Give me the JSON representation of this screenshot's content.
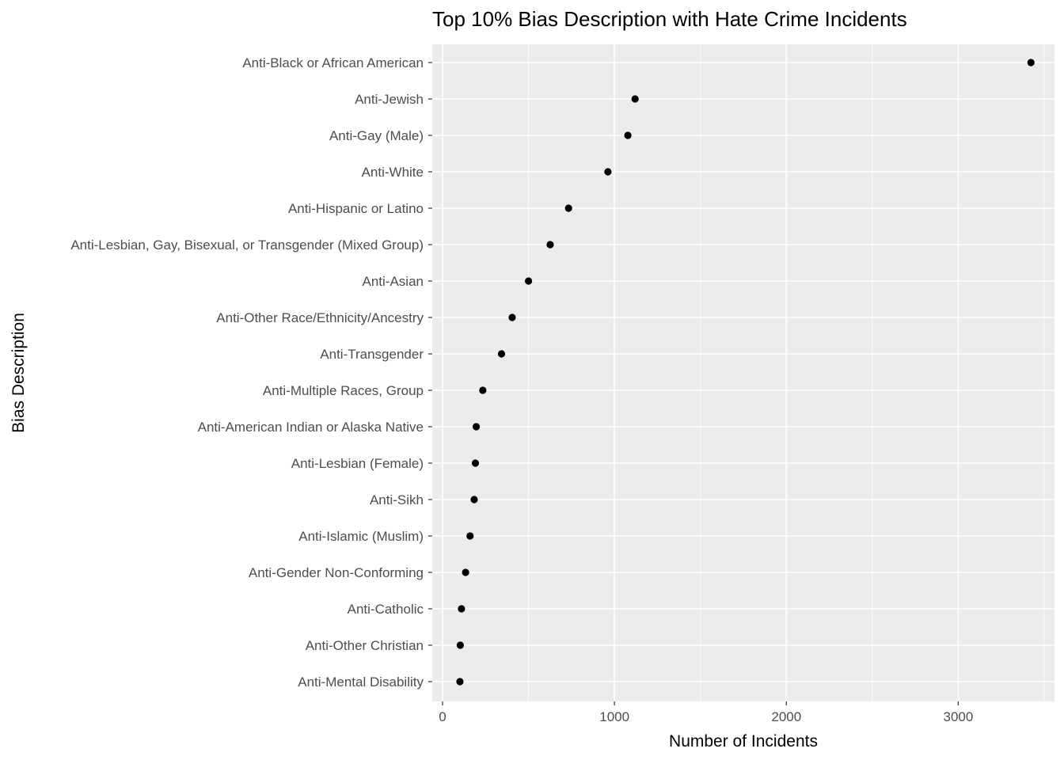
{
  "chart_data": {
    "type": "scatter",
    "title": "Top 10% Bias Description with Hate Crime Incidents",
    "xlabel": "Number of Incidents",
    "ylabel": "Bias Description",
    "xlim": [
      -60,
      3560
    ],
    "x_ticks": [
      0,
      1000,
      2000,
      3000
    ],
    "x_tick_labels": [
      "0",
      "1000",
      "2000",
      "3000"
    ],
    "grid": true,
    "legend": "none",
    "colors": {
      "panel_background": "#ebebeb",
      "grid_major": "#ffffff",
      "point": "#000000",
      "tick_text": "#4d4d4d",
      "tick_mark": "#333333"
    },
    "categories": [
      "Anti-Black or African American",
      "Anti-Jewish",
      "Anti-Gay (Male)",
      "Anti-White",
      "Anti-Hispanic or Latino",
      "Anti-Lesbian, Gay, Bisexual, or Transgender (Mixed Group)",
      "Anti-Asian",
      "Anti-Other Race/Ethnicity/Ancestry",
      "Anti-Transgender",
      "Anti-Multiple Races, Group",
      "Anti-American Indian or Alaska Native",
      "Anti-Lesbian (Female)",
      "Anti-Sikh",
      "Anti-Islamic (Muslim)",
      "Anti-Gender Non-Conforming",
      "Anti-Catholic",
      "Anti-Other Christian",
      "Anti-Mental Disability"
    ],
    "values": [
      3423,
      1120,
      1078,
      962,
      733,
      626,
      500,
      405,
      343,
      234,
      196,
      191,
      184,
      160,
      134,
      110,
      103,
      101
    ]
  }
}
